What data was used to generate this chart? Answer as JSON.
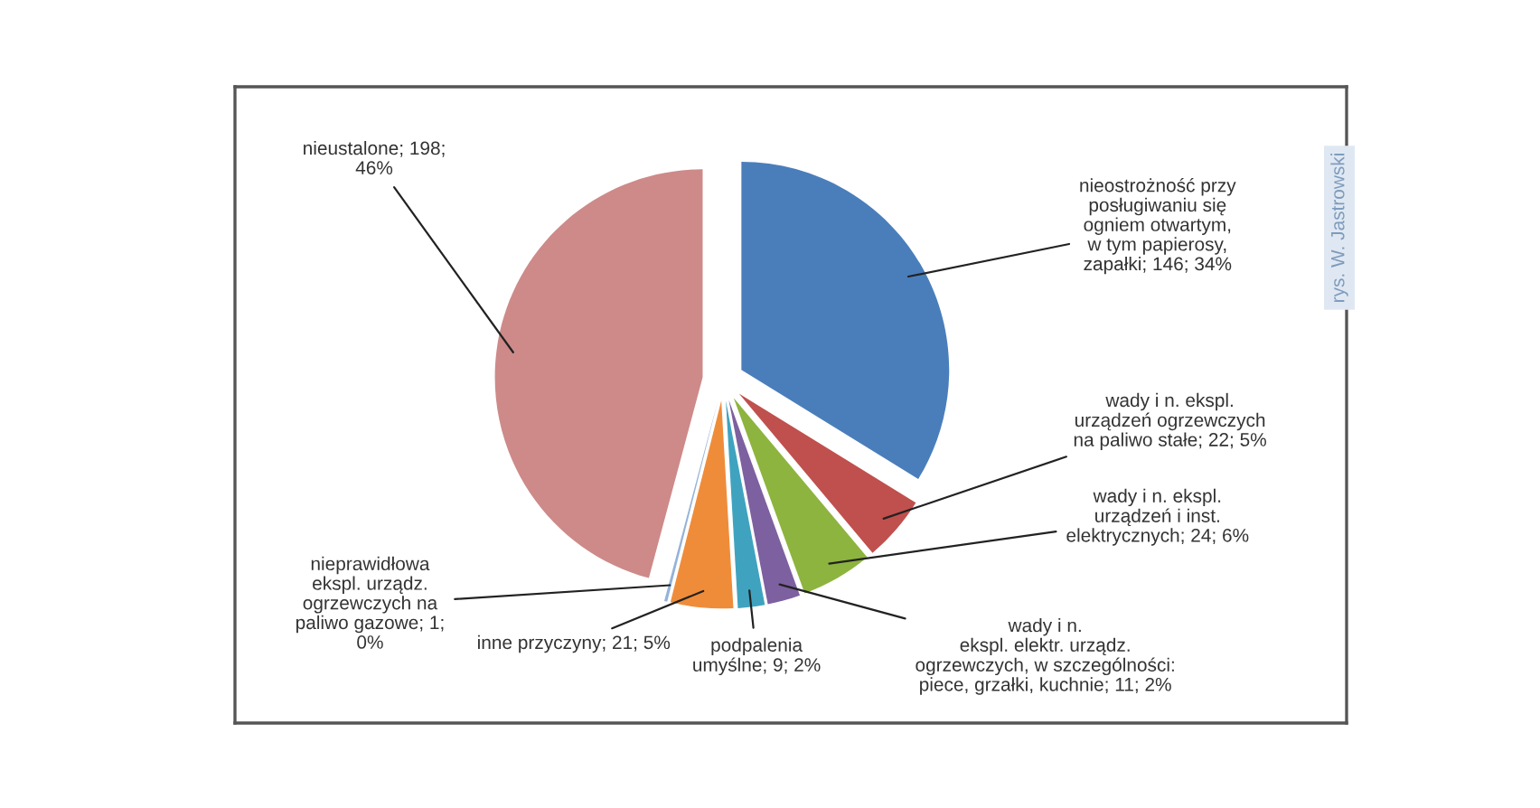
{
  "chart_data": {
    "type": "pie",
    "categories": [
      "nieostrożność przy\nposługiwaniu się\nogniem otwartym,\nw tym papierosy,\nzapałki",
      "wady i n. ekspl.\nurządzeń ogrzewczych\nna paliwo stałe",
      "wady i n. ekspl.\nurządzeń i inst.\nelektrycznych",
      "wady i n.\nekspl. elektr. urządz.\nogrzewczych, w szczególności:\npiece, grzałki, kuchnie",
      "podpalenia\numyślne",
      "inne przyczyny",
      "nieprawidłowa\nekspl. urządz.\nogrzewczych na\npaliwo gazowe",
      "nieustalone"
    ],
    "values": [
      146,
      22,
      24,
      11,
      9,
      21,
      1,
      198
    ],
    "colors": [
      "#4a7ebb",
      "#c0504d",
      "#8db43e",
      "#7d60a0",
      "#3fa3bf",
      "#ef8c3a",
      "#95b3d7",
      "#cd8a89"
    ],
    "value_labels": [
      "146; 34%",
      "22; 5%",
      "24; 6%",
      "11; 2%",
      "9; 2%",
      "21; 5%",
      "1;\n0%",
      "198;\n46%"
    ],
    "annotations": [
      "rys. W. Jastrowski"
    ]
  }
}
